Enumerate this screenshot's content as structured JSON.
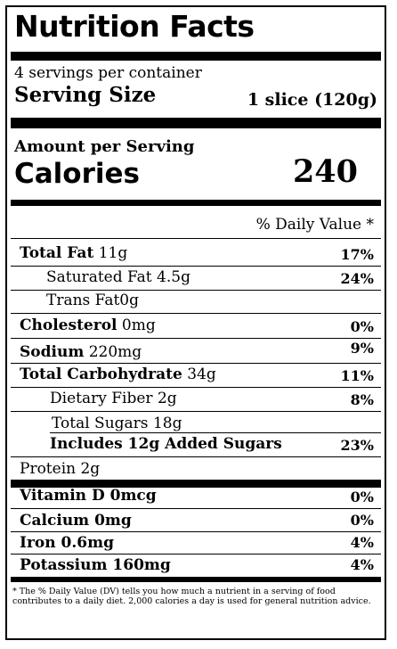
{
  "title": "Nutrition Facts",
  "servings_per_container": "4 servings per container",
  "serving_size": {
    "label": "Serving Size",
    "value": "1 slice (120g)"
  },
  "amount_per_serving": "Amount per Serving",
  "calories": {
    "label": "Calories",
    "value": "240"
  },
  "daily_value_header": "% Daily Value *",
  "nutrients": [
    {
      "name": "Total Fat",
      "amount": "11g",
      "dv": "17%"
    },
    {
      "name": "Saturated Fat",
      "amount": "4.5g",
      "dv": "24%"
    },
    {
      "name": "Trans Fat",
      "amount": "0g",
      "dv": ""
    },
    {
      "name": "Cholesterol",
      "amount": "0mg",
      "dv": "0%"
    },
    {
      "name": "Sodium",
      "amount": "220mg",
      "dv": "9%"
    },
    {
      "name": "Total Carbohydrate",
      "amount": "34g",
      "dv": "11%"
    },
    {
      "name": "Dietary Fiber",
      "amount": "2g",
      "dv": "8%"
    },
    {
      "name": "Total Sugars",
      "amount": "18g",
      "dv": ""
    },
    {
      "name": "Includes 12g Added Sugars",
      "amount": "",
      "dv": "23%"
    },
    {
      "name": "Protein",
      "amount": "2g",
      "dv": ""
    }
  ],
  "vitamins": [
    {
      "name": "Vitamin D",
      "amount": "0mcg",
      "dv": "0%"
    },
    {
      "name": "Calcium",
      "amount": "0mg",
      "dv": "0%"
    },
    {
      "name": "Iron",
      "amount": "0.6mg",
      "dv": "4%"
    },
    {
      "name": "Potassium",
      "amount": "160mg",
      "dv": "4%"
    }
  ],
  "footnote": "* The % Daily Value (DV) tells you how much a nutrient in a serving of food contributes to a daily diet. 2,000 calories a day is used for general nutrition advice."
}
